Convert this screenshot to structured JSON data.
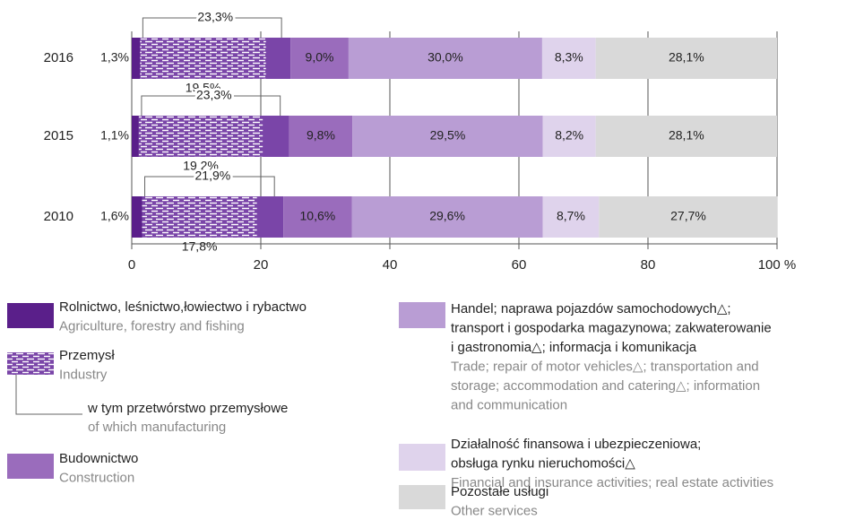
{
  "chart_data": {
    "type": "stacked-bar-horizontal",
    "categories": [
      "2016",
      "2015",
      "2010"
    ],
    "xlim": [
      0,
      100
    ],
    "xticks": [
      0,
      20,
      40,
      60,
      80,
      {
        "value": 100,
        "label": "100 %"
      }
    ],
    "grid": true,
    "series": [
      {
        "name": [
          "Rolnictwo, leśnictwo,łowiectwo i rybactwo"
        ],
        "name_en": [
          "Agriculture, forestry and fishing"
        ],
        "color": "#5a1f8a",
        "values": [
          1.3,
          1.1,
          1.6
        ],
        "value_labels": [
          "1,3%",
          "1,1%",
          "1,6%"
        ]
      },
      {
        "name": [
          "Przemysł"
        ],
        "name_en": [
          "Industry"
        ],
        "color": "#7a45a8",
        "values": [
          23.3,
          23.3,
          21.9
        ],
        "value_labels": [
          "23,3%",
          "23,3%",
          "21,9%"
        ]
      },
      {
        "name": [
          "Budownictwo"
        ],
        "name_en": [
          "Construction"
        ],
        "color": "#9a6cbc",
        "values": [
          9.0,
          9.8,
          10.6
        ],
        "value_labels": [
          "9,0%",
          "9,8%",
          "10,6%"
        ]
      },
      {
        "name": [
          "Handel; naprawa pojazdów samochodowych△;",
          "transport i gospodarka magazynowa; zakwaterowanie",
          "i gastronomia△; informacja i komunikacja"
        ],
        "name_en": [
          "Trade; repair of motor vehicles△; transportation and",
          "storage; accommodation and catering△; information",
          "and communication"
        ],
        "color": "#b99dd4",
        "values": [
          30.0,
          29.5,
          29.6
        ],
        "value_labels": [
          "30,0%",
          "29,5%",
          "29,6%"
        ]
      },
      {
        "name": [
          "Działalność finansowa i ubezpieczeniowa;",
          "obsługa rynku nieruchomości△"
        ],
        "name_en": [
          "Financial and insurance activities; real estate activities"
        ],
        "color": "#dfd3ec",
        "values": [
          8.3,
          8.2,
          8.7
        ],
        "value_labels": [
          "8,3%",
          "8,2%",
          "8,7%"
        ]
      },
      {
        "name": [
          "Pozostałe usługi"
        ],
        "name_en": [
          "Other services"
        ],
        "color": "#d9d9d9",
        "values": [
          28.1,
          28.1,
          27.7
        ],
        "value_labels": [
          "28,1%",
          "28,1%",
          "27,7%"
        ]
      }
    ],
    "manufacturing": {
      "name": "w tym przetwórstwo przemysłowe",
      "name_en": "of which manufacturing",
      "values": [
        19.5,
        19.2,
        17.8
      ],
      "value_labels": [
        "19,5%",
        "19,2%",
        "17,8%"
      ]
    }
  }
}
